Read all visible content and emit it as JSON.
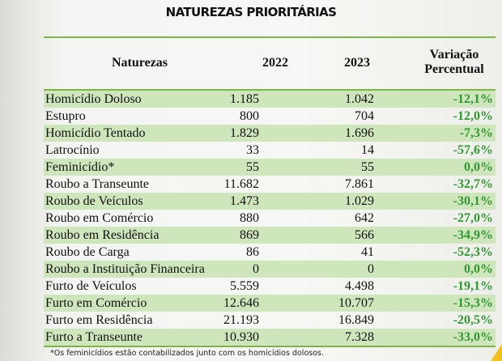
{
  "title": "NATUREZAS PRIORITÁRIAS",
  "headers": {
    "naturezas": "Naturezas",
    "y2022": "2022",
    "y2023": "2023",
    "var1": "Variação",
    "var2": "Percentual"
  },
  "rows": [
    [
      "Homicídio Doloso",
      "1.185",
      "1.042",
      "-12,1%"
    ],
    [
      "Estupro",
      "800",
      "704",
      "-12,0%"
    ],
    [
      "Homicídio Tentado",
      "1.829",
      "1.696",
      "-7,3%"
    ],
    [
      "Latrocínio",
      "33",
      "14",
      "-57,6%"
    ],
    [
      "Feminicídio*",
      "55",
      "55",
      "0,0%"
    ],
    [
      "Roubo a Transeunte",
      "11.682",
      "7.861",
      "-32,7%"
    ],
    [
      "Roubo de Veículos",
      "1.473",
      "1.029",
      "-30,1%"
    ],
    [
      "Roubo em Comércio",
      "880",
      "642",
      "-27,0%"
    ],
    [
      "Roubo em Residência",
      "869",
      "566",
      "-34,9%"
    ],
    [
      "Roubo de Carga",
      "86",
      "41",
      "-52,3%"
    ],
    [
      "Roubo a Instituição Financeira",
      "0",
      "0",
      "0,0%"
    ],
    [
      "Furto de Veículos",
      "5.559",
      "4.498",
      "-19,1%"
    ],
    [
      "Furto em Comércio",
      "12.646",
      "10.707",
      "-15,3%"
    ],
    [
      "Furto em Residência",
      "21.193",
      "16.849",
      "-20,5%"
    ],
    [
      "Furto a Transeunte",
      "10.930",
      "7.328",
      "-33,0%"
    ]
  ],
  "footnote": "*Os feminicídios estão contabilizados junto com os homicídios dolosos.",
  "colors": {
    "accent": "#7ab648",
    "row_alt": "#cfe6bd",
    "variation": "#2e9a2e"
  }
}
